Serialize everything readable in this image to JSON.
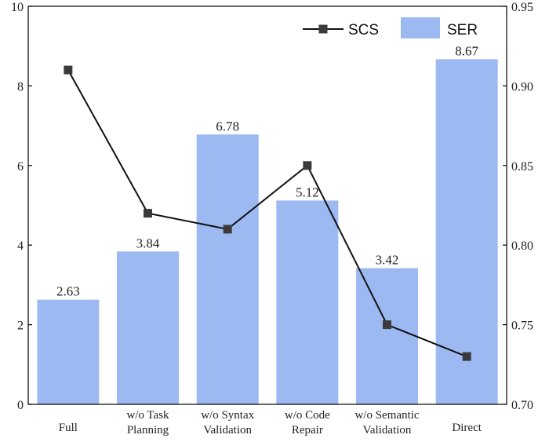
{
  "chart_data": {
    "type": "bar",
    "categories": [
      [
        "Full"
      ],
      [
        "w/o Task",
        "Planning"
      ],
      [
        "w/o Syntax",
        "Validation"
      ],
      [
        "w/o Code",
        "Repair"
      ],
      [
        "w/o Semantic",
        "Validation"
      ],
      [
        "Direct"
      ]
    ],
    "series": [
      {
        "name": "SER",
        "type": "bar",
        "axis": "left",
        "values": [
          2.63,
          3.84,
          6.78,
          5.12,
          3.42,
          8.67
        ],
        "value_labels": [
          "2.63",
          "3.84",
          "6.78",
          "5.12",
          "3.42",
          "8.67"
        ],
        "color": "#9db9f2"
      },
      {
        "name": "SCS",
        "type": "line",
        "axis": "right",
        "values": [
          0.91,
          0.82,
          0.81,
          0.85,
          0.75,
          0.73
        ],
        "color": "#111111",
        "marker": "square",
        "marker_color": "#3a3a3a"
      }
    ],
    "y_left": {
      "min": 0,
      "max": 10,
      "ticks": [
        0,
        2,
        4,
        6,
        8,
        10
      ],
      "tick_labels": [
        "0",
        "2",
        "4",
        "6",
        "8",
        "10"
      ]
    },
    "y_right": {
      "min": 0.7,
      "max": 0.95,
      "ticks": [
        0.7,
        0.75,
        0.8,
        0.85,
        0.9,
        0.95
      ],
      "tick_labels": [
        "0.70",
        "0.75",
        "0.80",
        "0.85",
        "0.90",
        "0.95"
      ]
    },
    "legend": {
      "placement": "top-right",
      "items": [
        "SCS",
        "SER"
      ]
    },
    "grid": false,
    "title": "",
    "xlabel": "",
    "ylabel": ""
  }
}
